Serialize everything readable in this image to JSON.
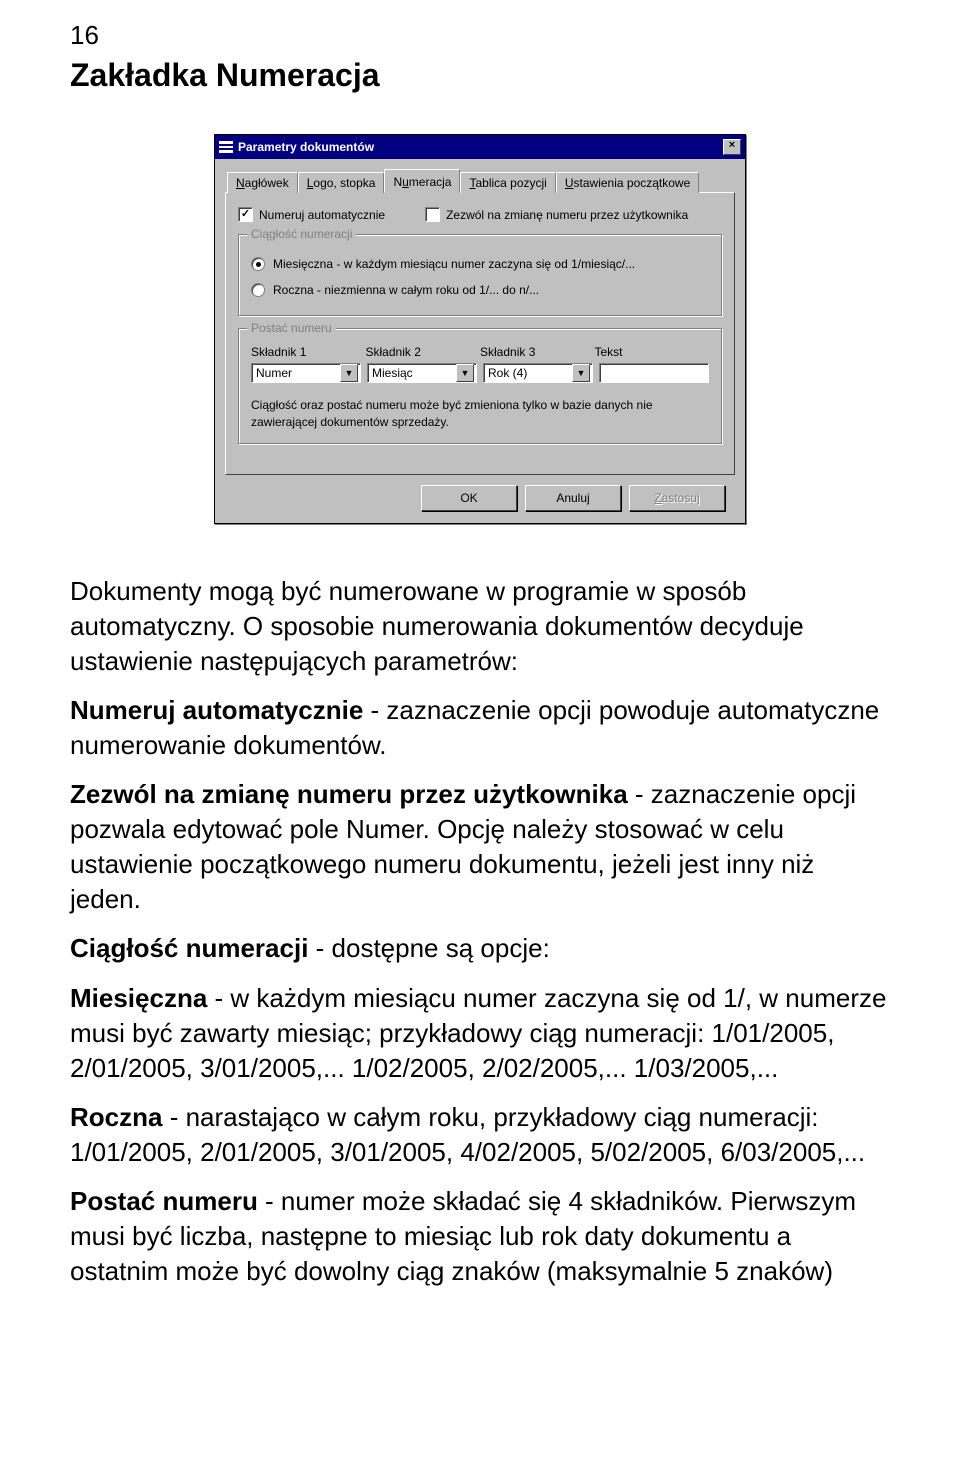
{
  "page_number": "16",
  "section_title": "Zakładka Numeracja",
  "dialog": {
    "title": "Parametry dokumentów",
    "close_glyph": "×",
    "tabs": {
      "naglowek": {
        "label": "Nagłówek",
        "mnemonic": "N"
      },
      "logo": {
        "label": "Logo, stopka",
        "mnemonic": "L"
      },
      "numeracja": {
        "label": "Numeracja",
        "mnemonic": "u"
      },
      "tablica": {
        "label": "Tablica pozycji",
        "mnemonic": "T"
      },
      "ustawienia": {
        "label": "Ustawienia początkowe",
        "mnemonic": "U"
      }
    },
    "chk_auto_label": "Numeruj automatycznie",
    "chk_auto_checked": true,
    "chk_allow_label": "Zezwól na zmianę numeru przez użytkownika",
    "chk_allow_checked": false,
    "group_ciag": {
      "legend": "Ciągłość numeracji",
      "opt_monthly": "Miesięczna - w każdym miesiącu numer zaczyna się od 1/miesiąc/...",
      "opt_yearly": "Roczna - niezmienna w całym roku od 1/... do n/...",
      "selected": "monthly"
    },
    "group_postac": {
      "legend": "Postać numeru",
      "lab1": "Składnik 1",
      "lab2": "Składnik 2",
      "lab3": "Składnik 3",
      "lab4": "Tekst",
      "val1": "Numer",
      "val2": "Miesiąc",
      "val3": "Rok (4)",
      "val4": "",
      "note": "Ciągłość oraz postać numeru może być zmieniona tylko w bazie danych nie zawierającej dokumentów sprzedaży."
    },
    "buttons": {
      "ok": "OK",
      "cancel": "Anuluj",
      "apply": "Zastosuj",
      "apply_mnemonic": "Z"
    }
  },
  "text": {
    "intro": "Dokumenty mogą być numerowane w programie w sposób automatyczny. O sposobie numerowania dokumentów decyduje ustawienie następujących parametrów:",
    "para_auto_b": "Numeruj automatycznie",
    "para_auto": " - zaznaczenie opcji powoduje automatyczne numerowanie dokumentów.",
    "para_zezwol_b": "Zezwól na zmianę numeru przez użytkownika",
    "para_zezwol": " - zaznaczenie opcji pozwala edytować pole Numer. Opcję należy stosować w celu ustawienie początkowego numeru dokumentu, jeżeli jest inny niż jeden.",
    "para_ciag_b": "Ciągłość numeracji",
    "para_ciag": " - dostępne są opcje:",
    "para_monthly_b": "Miesięczna",
    "para_monthly": " - w każdym miesiącu numer zaczyna się od 1/, w numerze musi być zawarty miesiąc; przykładowy ciąg numeracji: 1/01/2005, 2/01/2005, 3/01/2005,... 1/02/2005, 2/02/2005,... 1/03/2005,...",
    "para_yearly_b": "Roczna",
    "para_yearly": " - narastająco w całym roku, przykładowy ciąg numeracji: 1/01/2005, 2/01/2005, 3/01/2005, 4/02/2005, 5/02/2005, 6/03/2005,...",
    "para_postac_b": "Postać numeru",
    "para_postac": " - numer może składać się 4 składników. Pierwszym musi być liczba, następne to miesiąc lub rok daty dokumentu a ostatnim może być dowolny ciąg znaków (maksymalnie 5 znaków)"
  },
  "colors": {
    "titlebar": "#000080",
    "dialog_bg": "#c0c0c0",
    "page_bg": "#ffffff"
  }
}
